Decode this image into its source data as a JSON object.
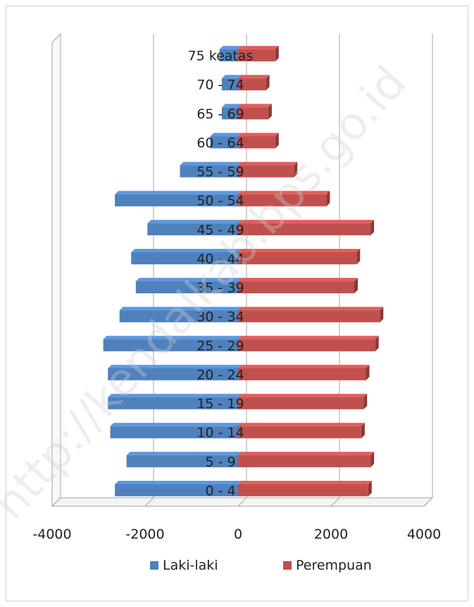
{
  "watermark": "http://kendalkab.bps.go.id",
  "chart_data": {
    "type": "bar",
    "orientation": "horizontal",
    "categories": [
      "0 - 4",
      "5 - 9",
      "10 - 14",
      "15 - 19",
      "20 - 24",
      "25 - 29",
      "30 - 34",
      "35 - 39",
      "40 - 44",
      "45 - 49",
      "50 - 54",
      "55 - 59",
      "60 - 64",
      "65 - 69",
      "70 - 74",
      "75 keatas"
    ],
    "series": [
      {
        "name": "Laki-laki",
        "color": "#4f81bd",
        "values": [
          -2650,
          -2400,
          -2750,
          -2800,
          -2800,
          -2900,
          -2550,
          -2200,
          -2300,
          -1950,
          -2650,
          -1250,
          -600,
          -350,
          -350,
          -400
        ]
      },
      {
        "name": "Perempuan",
        "color": "#c0504d",
        "values": [
          2800,
          2850,
          2650,
          2700,
          2750,
          2950,
          3050,
          2500,
          2550,
          2850,
          1900,
          1200,
          800,
          650,
          600,
          800
        ]
      }
    ],
    "xlim": [
      -4000,
      4000
    ],
    "xticks": [
      "-4000",
      "-2000",
      "0",
      "2000",
      "4000"
    ],
    "grid": "vertical",
    "legend": "bottom",
    "title": "",
    "xlabel": "",
    "ylabel": ""
  }
}
